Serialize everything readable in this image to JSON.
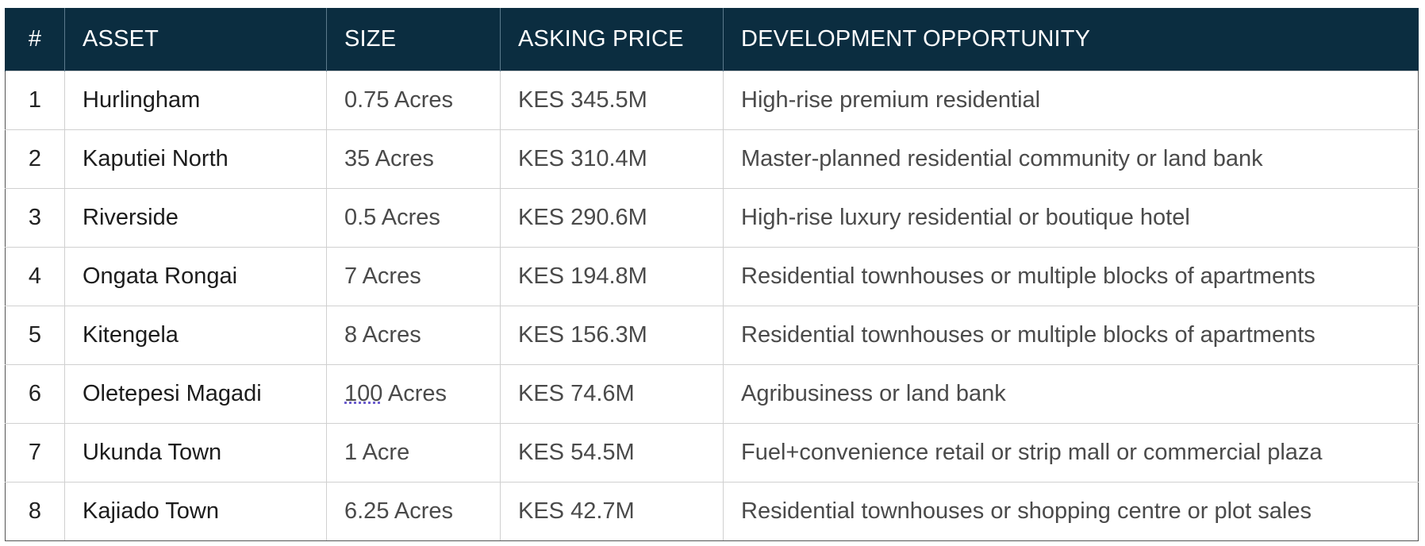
{
  "table": {
    "headers": [
      "#",
      "ASSET",
      "SIZE",
      "ASKING PRICE",
      "DEVELOPMENT OPPORTUNITY"
    ],
    "rows": [
      {
        "num": "1",
        "asset": "Hurlingham",
        "size": "0.75 Acres",
        "price": "KES 345.5M",
        "opportunity": "High-rise premium residential"
      },
      {
        "num": "2",
        "asset": "Kaputiei North",
        "size": "35 Acres",
        "price": "KES 310.4M",
        "opportunity": "Master-planned residential community or land bank"
      },
      {
        "num": "3",
        "asset": "Riverside",
        "size": "0.5 Acres",
        "price": "KES 290.6M",
        "opportunity": "High-rise luxury residential or boutique hotel"
      },
      {
        "num": "4",
        "asset": "Ongata Rongai",
        "size": "7 Acres",
        "price": "KES 194.8M",
        "opportunity": "Residential townhouses or multiple blocks of apartments"
      },
      {
        "num": "5",
        "asset": "Kitengela",
        "size": "8 Acres",
        "price": "KES 156.3M",
        "opportunity": "Residential townhouses or multiple blocks of apartments"
      },
      {
        "num": "6",
        "asset": "Oletepesi Magadi",
        "size_value": "100",
        "size_unit": " Acres",
        "price": "KES 74.6M",
        "opportunity": "Agribusiness or land bank"
      },
      {
        "num": "7",
        "asset": "Ukunda Town",
        "size": "1 Acre",
        "price": "KES 54.5M",
        "opportunity": "Fuel+convenience retail or strip mall or commercial plaza"
      },
      {
        "num": "8",
        "asset": "Kajiado Town",
        "size": "6.25 Acres",
        "price": "KES 42.7M",
        "opportunity": "Residential townhouses or shopping centre or plot sales"
      }
    ]
  },
  "colors": {
    "header_background": "#0b2d40",
    "header_text": "#ffffff",
    "grid_line": "#d0d0d0"
  }
}
